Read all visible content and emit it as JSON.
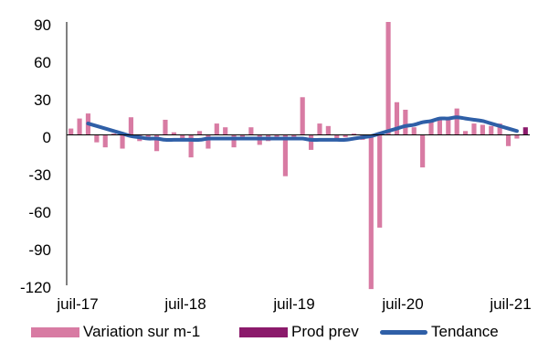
{
  "chart_data": {
    "type": "bar",
    "y_ticks": [
      "90",
      "60",
      "30",
      "0",
      "-30",
      "-60",
      "-90",
      "-120"
    ],
    "x_tick_labels": [
      "juil-17",
      "juil-18",
      "juil-19",
      "juil-20",
      "juil-21"
    ],
    "ylim": [
      -120,
      90
    ],
    "grid": false,
    "legend_position": "bottom",
    "colors": {
      "variation": "#d87ba3",
      "prod_prev": "#8b1a6b",
      "tendance": "#2f5fa7"
    },
    "series": [
      {
        "name": "Variation sur m-1",
        "type": "bar",
        "values": [
          5,
          13,
          17,
          -6,
          -10,
          1,
          -11,
          14,
          -5,
          -3,
          -13,
          12,
          2,
          -4,
          -18,
          3,
          -11,
          9,
          6,
          -10,
          -2,
          6,
          -8,
          -5,
          -3,
          -33,
          -2,
          30,
          -12,
          9,
          7,
          -5,
          -2,
          1,
          -4,
          -123,
          -74,
          90,
          26,
          20,
          6,
          -26,
          12,
          13,
          13,
          21,
          3,
          9,
          8,
          7,
          9,
          -9,
          -3
        ]
      },
      {
        "name": "Prod prev",
        "type": "bar",
        "values": [
          null,
          null,
          null,
          null,
          null,
          null,
          null,
          null,
          null,
          null,
          null,
          null,
          null,
          null,
          null,
          null,
          null,
          null,
          null,
          null,
          null,
          null,
          null,
          null,
          null,
          null,
          null,
          null,
          null,
          null,
          null,
          null,
          null,
          null,
          null,
          null,
          null,
          null,
          null,
          null,
          null,
          null,
          null,
          null,
          null,
          null,
          null,
          null,
          null,
          null,
          null,
          null,
          null,
          6
        ]
      },
      {
        "name": "Tendance",
        "type": "line",
        "values": [
          null,
          null,
          9,
          7,
          5,
          3,
          1,
          -1,
          -2,
          -3,
          -3,
          -4,
          -4,
          -4,
          -4,
          -4,
          -3,
          -3,
          -3,
          -3,
          -3,
          -3,
          -3,
          -3,
          -3,
          -3,
          -3,
          -3,
          -4,
          -4,
          -4,
          -4,
          -4,
          -3,
          -2,
          -1,
          1,
          3,
          5,
          7,
          8,
          10,
          11,
          13,
          13,
          14,
          13,
          12,
          11,
          9,
          7,
          5,
          3
        ]
      }
    ]
  }
}
